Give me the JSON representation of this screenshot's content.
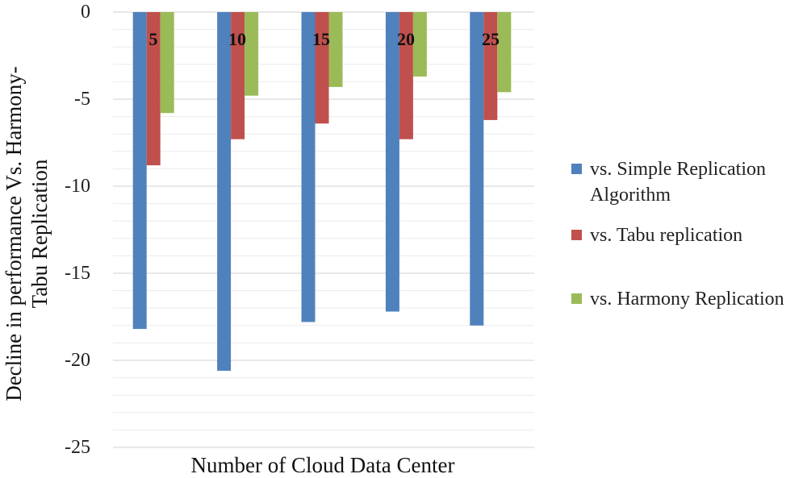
{
  "chart_data": {
    "type": "bar",
    "orientation": "vertical",
    "categories": [
      "5",
      "10",
      "15",
      "20",
      "25"
    ],
    "series": [
      {
        "name": "vs. Simple Replication Algorithm",
        "values": [
          -18.2,
          -20.6,
          -17.8,
          -17.2,
          -18.0
        ],
        "color": "#4f81bd"
      },
      {
        "name": "vs. Tabu replication",
        "values": [
          -8.8,
          -7.3,
          -6.4,
          -7.3,
          -6.2
        ],
        "color": "#c0504d"
      },
      {
        "name": "vs. Harmony Replication",
        "values": [
          -5.8,
          -4.8,
          -4.3,
          -3.7,
          -4.6
        ],
        "color": "#9bbb59"
      }
    ],
    "xlabel": "Number of Cloud Data Center",
    "ylabel": [
      "Decline in performance Vs. Harmony-",
      "Tabu Replication"
    ],
    "ylim": [
      -25,
      0
    ],
    "yticks": [
      "0",
      "-5",
      "-10",
      "-15",
      "-20",
      "-25"
    ],
    "legend": {
      "position": "right",
      "entries": [
        [
          "vs. Simple Replication",
          "Algorithm"
        ],
        [
          "vs. Tabu replication"
        ],
        [
          "vs. Harmony Replication"
        ]
      ]
    },
    "grid": true
  }
}
